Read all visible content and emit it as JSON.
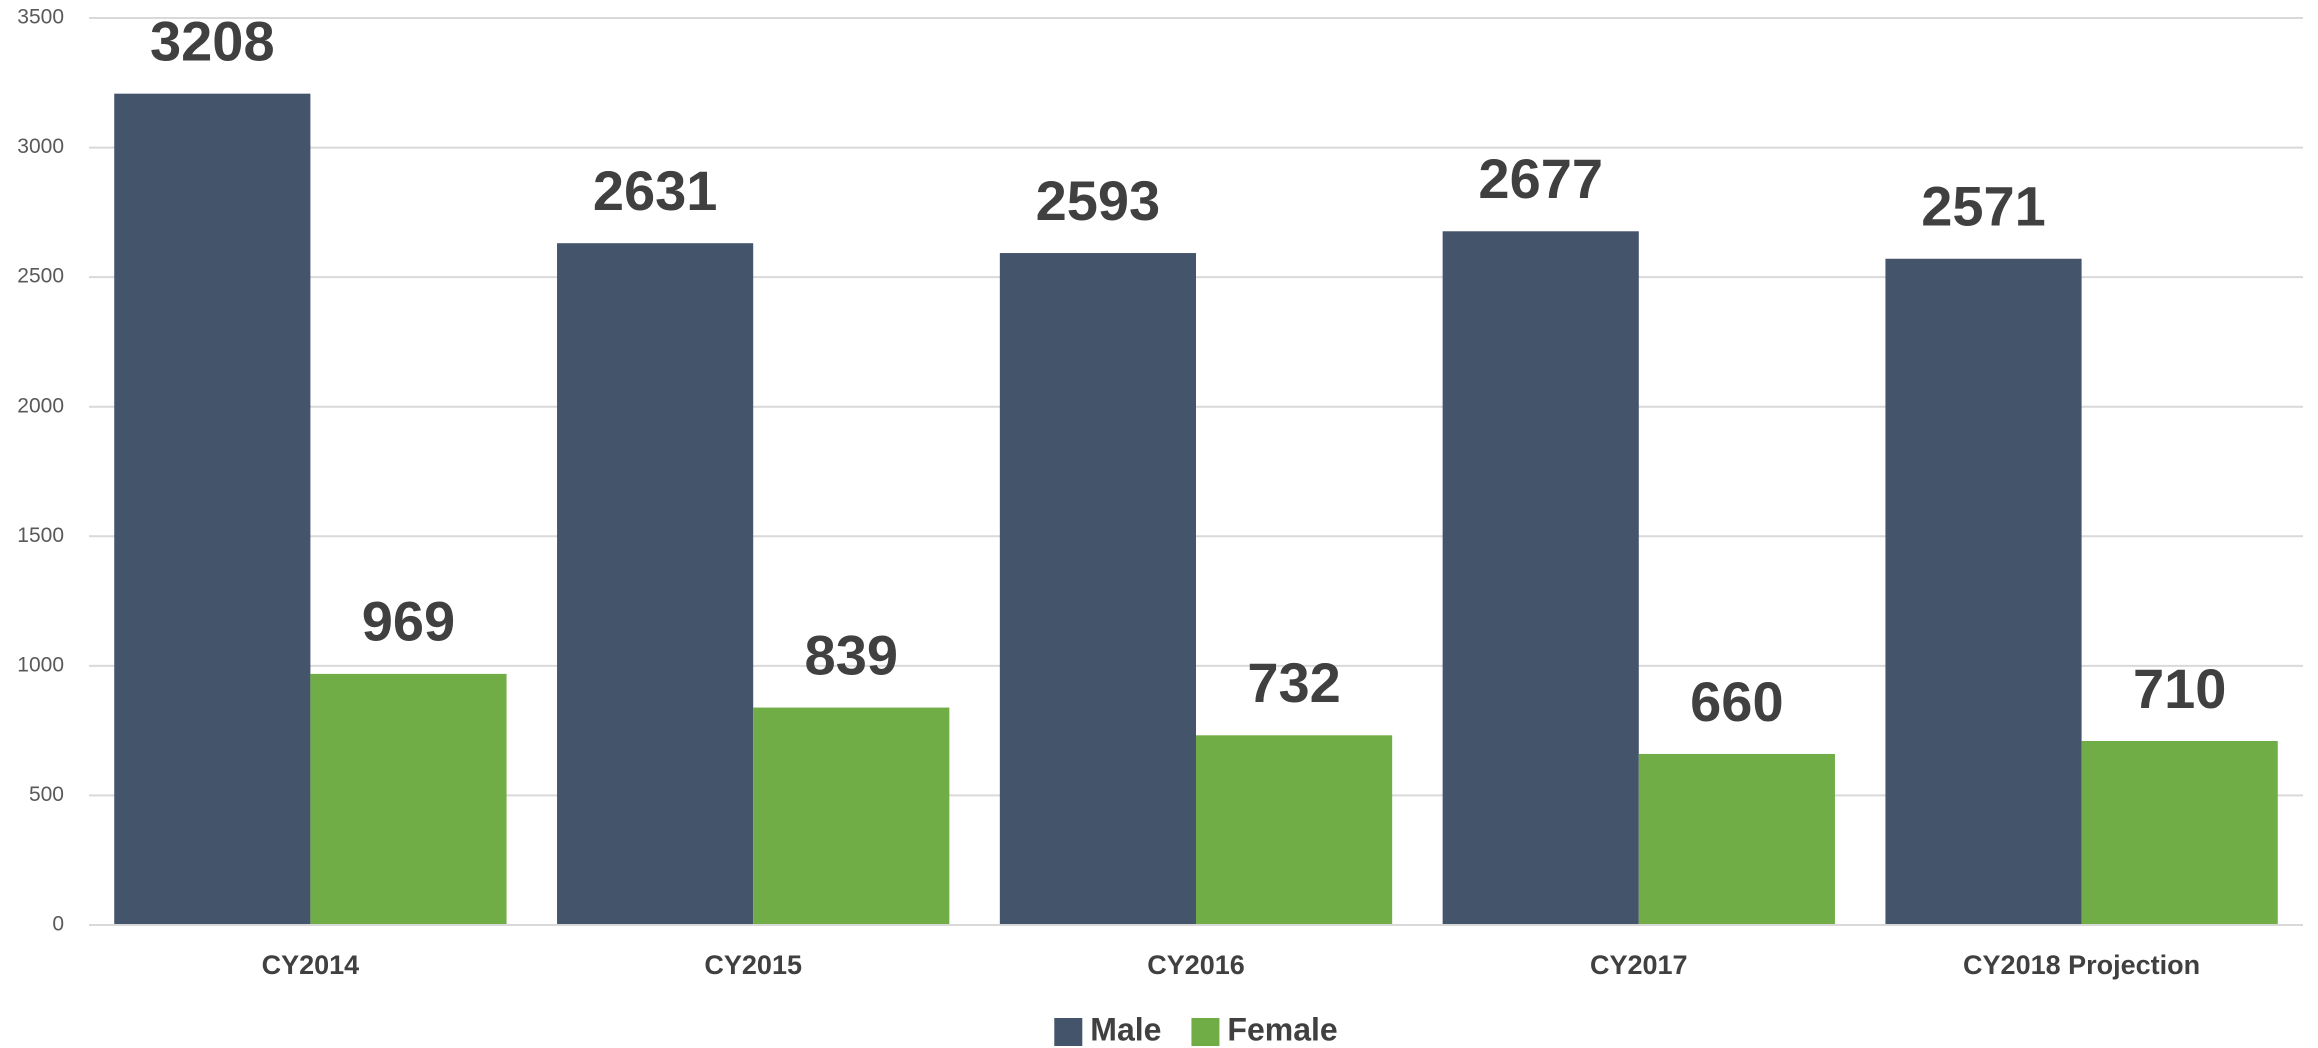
{
  "chart_data": {
    "type": "bar",
    "categories": [
      "CY2014",
      "CY2015",
      "CY2016",
      "CY2017",
      "CY2018 Projection"
    ],
    "series": [
      {
        "name": "Male",
        "color": "#44546a",
        "values": [
          3208,
          2631,
          2593,
          2677,
          2571
        ]
      },
      {
        "name": "Female",
        "color": "#70ad47",
        "values": [
          969,
          839,
          732,
          660,
          710
        ]
      }
    ],
    "ylim": [
      0,
      3500
    ],
    "yticks": [
      0,
      500,
      1000,
      1500,
      2000,
      2500,
      3000,
      3500
    ],
    "grid": true,
    "legend": "bottom"
  }
}
